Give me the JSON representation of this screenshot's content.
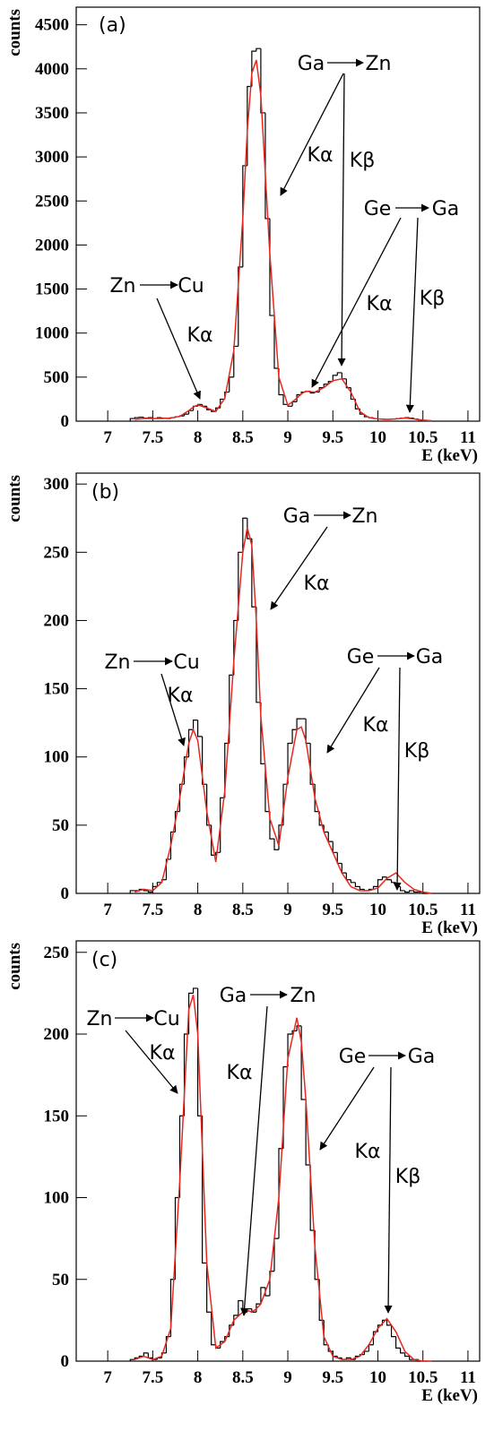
{
  "chart_data": [
    {
      "type": "histogram",
      "title": "(a)",
      "x_label": "E (keV)",
      "y_label": "counts",
      "color": "#000000",
      "xlim": [
        6.65,
        11.13
      ],
      "xticks": [
        7,
        7.5,
        8,
        8.5,
        9,
        9.5,
        10,
        10.5,
        11
      ],
      "ylim": [
        0,
        4700
      ],
      "yticks": [
        0,
        500,
        1000,
        1500,
        2000,
        2500,
        3000,
        3500,
        4000,
        4500
      ],
      "bins": [
        7.25,
        7.3,
        7.35,
        7.4,
        7.45,
        7.5,
        7.55,
        7.6,
        7.65,
        7.7,
        7.75,
        7.8,
        7.85,
        7.9,
        7.95,
        8,
        8.05,
        8.1,
        8.15,
        8.2,
        8.25,
        8.3,
        8.35,
        8.4,
        8.45,
        8.5,
        8.55,
        8.6,
        8.65,
        8.7,
        8.75,
        8.8,
        8.85,
        8.9,
        8.95,
        9,
        9.05,
        9.1,
        9.15,
        9.2,
        9.25,
        9.3,
        9.35,
        9.4,
        9.45,
        9.5,
        9.55,
        9.6,
        9.65,
        9.7,
        9.75,
        9.8,
        9.85,
        9.9,
        9.95,
        10,
        10.05,
        10.1,
        10.15,
        10.2,
        10.25,
        10.3,
        10.35,
        10.4,
        10.45,
        10.5,
        10.55
      ],
      "values": [
        30,
        40,
        45,
        35,
        40,
        30,
        40,
        35,
        30,
        40,
        50,
        60,
        80,
        120,
        170,
        190,
        170,
        130,
        110,
        150,
        250,
        330,
        500,
        850,
        1750,
        2900,
        3800,
        4200,
        4230,
        3500,
        2300,
        1200,
        600,
        300,
        190,
        170,
        220,
        300,
        330,
        340,
        320,
        330,
        380,
        420,
        450,
        520,
        550,
        480,
        380,
        250,
        140,
        80,
        50,
        40,
        30,
        25,
        20,
        20,
        25,
        30,
        35,
        40,
        35,
        25,
        15,
        10
      ],
      "fit": {
        "color": "#e8281e",
        "x": [
          7.3,
          7.4,
          7.5,
          7.6,
          7.7,
          7.8,
          7.9,
          7.95,
          8,
          8.1,
          8.2,
          8.3,
          8.4,
          8.5,
          8.55,
          8.6,
          8.65,
          8.7,
          8.8,
          8.9,
          9,
          9.1,
          9.15,
          9.2,
          9.3,
          9.4,
          9.5,
          9.6,
          9.7,
          9.8,
          9.9,
          10,
          10.1,
          10.2,
          10.3,
          10.4,
          10.5,
          10.6
        ],
        "values": [
          20,
          30,
          30,
          30,
          35,
          55,
          120,
          160,
          185,
          150,
          110,
          260,
          800,
          2300,
          3300,
          3950,
          4100,
          3700,
          1900,
          500,
          180,
          260,
          310,
          340,
          330,
          380,
          460,
          480,
          330,
          110,
          40,
          25,
          20,
          25,
          35,
          25,
          10,
          5
        ]
      },
      "annotations": [
        "Ga",
        "Zn",
        "Kα",
        "Kβ",
        "Ge",
        "Ga",
        "Kα",
        "Kβ",
        "Zn",
        "Cu",
        "Kα"
      ]
    },
    {
      "type": "histogram",
      "title": "(b)",
      "x_label": "E (keV)",
      "y_label": "counts",
      "color": "#000000",
      "xlim": [
        6.65,
        11.13
      ],
      "xticks": [
        7,
        7.5,
        8,
        8.5,
        9,
        9.5,
        10,
        10.5,
        11
      ],
      "ylim": [
        0,
        308
      ],
      "yticks": [
        0,
        50,
        100,
        150,
        200,
        250,
        300
      ],
      "bins": [
        7.25,
        7.3,
        7.35,
        7.4,
        7.45,
        7.5,
        7.55,
        7.6,
        7.65,
        7.7,
        7.75,
        7.8,
        7.85,
        7.9,
        7.95,
        8,
        8.05,
        8.1,
        8.15,
        8.2,
        8.25,
        8.3,
        8.35,
        8.4,
        8.45,
        8.5,
        8.55,
        8.6,
        8.65,
        8.7,
        8.75,
        8.8,
        8.85,
        8.9,
        8.95,
        9,
        9.05,
        9.1,
        9.15,
        9.2,
        9.25,
        9.3,
        9.35,
        9.4,
        9.45,
        9.5,
        9.55,
        9.6,
        9.65,
        9.7,
        9.75,
        9.8,
        9.85,
        9.9,
        9.95,
        10,
        10.05,
        10.1,
        10.15,
        10.2,
        10.25,
        10.3,
        10.35,
        10.4,
        10.45,
        10.5,
        10.55
      ],
      "values": [
        2,
        2,
        3,
        2,
        1,
        5,
        8,
        10,
        25,
        45,
        60,
        80,
        100,
        120,
        127,
        115,
        80,
        50,
        28,
        30,
        70,
        110,
        160,
        200,
        250,
        275,
        260,
        210,
        140,
        95,
        60,
        40,
        32,
        50,
        80,
        110,
        120,
        128,
        128,
        110,
        80,
        60,
        50,
        45,
        38,
        30,
        22,
        15,
        10,
        8,
        5,
        3,
        2,
        3,
        5,
        10,
        12,
        10,
        8,
        5,
        2,
        1,
        2,
        1,
        1,
        0
      ],
      "fit": {
        "color": "#e8281e",
        "x": [
          7.3,
          7.4,
          7.5,
          7.6,
          7.7,
          7.8,
          7.9,
          7.95,
          8,
          8.1,
          8.2,
          8.3,
          8.4,
          8.5,
          8.55,
          8.6,
          8.65,
          8.7,
          8.8,
          8.9,
          9,
          9.1,
          9.15,
          9.2,
          9.3,
          9.4,
          9.5,
          9.6,
          9.7,
          9.8,
          9.9,
          10,
          10.1,
          10.2,
          10.3,
          10.4,
          10.5,
          10.6
        ],
        "values": [
          1,
          3,
          2,
          8,
          35,
          70,
          110,
          120,
          112,
          60,
          23,
          75,
          170,
          250,
          268,
          255,
          200,
          130,
          55,
          35,
          85,
          120,
          122,
          112,
          70,
          45,
          30,
          15,
          5,
          2,
          2,
          4,
          11,
          15,
          8,
          3,
          1,
          0
        ]
      },
      "annotations": [
        "Ga",
        "Zn",
        "Kα",
        "Zn",
        "Cu",
        "Kα",
        "Ge",
        "Ga",
        "Kα",
        "Kβ"
      ]
    },
    {
      "type": "histogram",
      "title": "(c)",
      "x_label": "E (keV)",
      "y_label": "counts",
      "color": "#000000",
      "xlim": [
        6.65,
        11.13
      ],
      "xticks": [
        7,
        7.5,
        8,
        8.5,
        9,
        9.5,
        10,
        10.5,
        11
      ],
      "ylim": [
        0,
        257
      ],
      "yticks": [
        0,
        50,
        100,
        150,
        200,
        250
      ],
      "bins": [
        7.25,
        7.3,
        7.35,
        7.4,
        7.45,
        7.5,
        7.55,
        7.6,
        7.65,
        7.7,
        7.75,
        7.8,
        7.85,
        7.9,
        7.95,
        8,
        8.05,
        8.1,
        8.15,
        8.2,
        8.25,
        8.3,
        8.35,
        8.4,
        8.45,
        8.5,
        8.55,
        8.6,
        8.65,
        8.7,
        8.75,
        8.8,
        8.85,
        8.9,
        8.95,
        9,
        9.05,
        9.1,
        9.15,
        9.2,
        9.25,
        9.3,
        9.35,
        9.4,
        9.45,
        9.5,
        9.55,
        9.6,
        9.65,
        9.7,
        9.75,
        9.8,
        9.85,
        9.9,
        9.95,
        10,
        10.05,
        10.1,
        10.15,
        10.2,
        10.25,
        10.3,
        10.35,
        10.4,
        10.45,
        10.5,
        10.55
      ],
      "values": [
        1,
        2,
        3,
        5,
        2,
        1,
        2,
        5,
        15,
        50,
        100,
        150,
        200,
        225,
        228,
        150,
        60,
        30,
        10,
        8,
        12,
        15,
        22,
        28,
        37,
        30,
        32,
        30,
        35,
        45,
        40,
        55,
        75,
        130,
        180,
        200,
        202,
        205,
        160,
        120,
        80,
        50,
        25,
        10,
        6,
        3,
        2,
        1,
        2,
        1,
        3,
        4,
        6,
        10,
        18,
        22,
        25,
        22,
        15,
        8,
        5,
        3,
        1,
        1,
        0,
        0
      ],
      "fit": {
        "color": "#e8281e",
        "x": [
          7.3,
          7.4,
          7.5,
          7.6,
          7.7,
          7.8,
          7.9,
          7.95,
          8,
          8.1,
          8.2,
          8.3,
          8.4,
          8.5,
          8.55,
          8.6,
          8.65,
          8.7,
          8.8,
          8.9,
          9,
          9.1,
          9.15,
          9.2,
          9.3,
          9.4,
          9.5,
          9.6,
          9.7,
          9.8,
          9.9,
          10,
          10.1,
          10.2,
          10.3,
          10.4,
          10.5,
          10.6
        ],
        "values": [
          1,
          3,
          1,
          3,
          20,
          110,
          215,
          224,
          200,
          60,
          8,
          12,
          25,
          30,
          31,
          30,
          32,
          35,
          50,
          100,
          185,
          210,
          195,
          160,
          70,
          15,
          3,
          1,
          1,
          3,
          10,
          20,
          26,
          18,
          6,
          1,
          0,
          0
        ]
      },
      "annotations": [
        "Ga",
        "Zn",
        "Kα",
        "Zn",
        "Cu",
        "Kα",
        "Ge",
        "Ga",
        "Kα",
        "Kβ"
      ]
    }
  ]
}
